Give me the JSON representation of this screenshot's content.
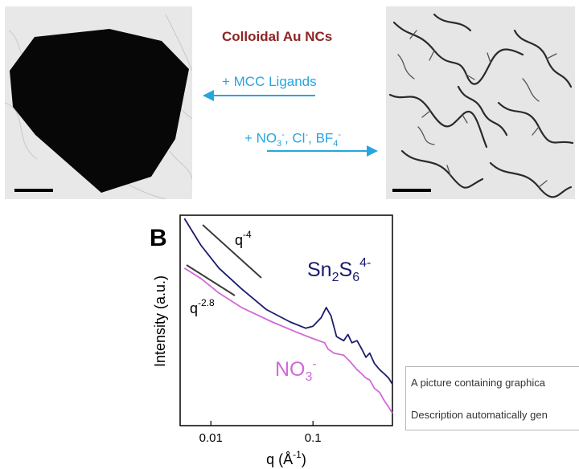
{
  "figure": {
    "title": "Colloidal Au NCs",
    "arrow_left_label": "+ MCC Ligands",
    "arrow_right_label_parts": [
      "+ NO",
      "3",
      "-",
      ", Cl",
      "-",
      ", BF",
      "4",
      "-"
    ],
    "panel_letter": "B"
  },
  "caption_box": {
    "line1": "A picture containing graphica",
    "line2": "Description automatically gen"
  },
  "colors": {
    "title": "#8e2424",
    "arrows": "#27a5e0",
    "sn2s6_series": "#1b1b6e",
    "no3_series": "#d06ad8"
  },
  "chart_data": {
    "type": "line",
    "xscale": "log",
    "xlim": [
      0.005,
      0.6
    ],
    "xticks": [
      {
        "value": 0.01,
        "label": "0.01"
      },
      {
        "value": 0.1,
        "label": "0.1"
      }
    ],
    "xlabel_parts": [
      "q (Å",
      "-1",
      ")"
    ],
    "ylabel": "Intensity (a.u.)",
    "series": [
      {
        "name_parts": [
          "Sn",
          "2",
          "S",
          "6",
          "4-"
        ],
        "color": "#1b1b6e",
        "points": [
          [
            0.0055,
            1.0
          ],
          [
            0.008,
            0.87
          ],
          [
            0.012,
            0.76
          ],
          [
            0.02,
            0.66
          ],
          [
            0.035,
            0.56
          ],
          [
            0.06,
            0.5
          ],
          [
            0.085,
            0.47
          ],
          [
            0.1,
            0.48
          ],
          [
            0.12,
            0.52
          ],
          [
            0.135,
            0.57
          ],
          [
            0.15,
            0.53
          ],
          [
            0.17,
            0.43
          ],
          [
            0.2,
            0.41
          ],
          [
            0.22,
            0.44
          ],
          [
            0.24,
            0.4
          ],
          [
            0.27,
            0.41
          ],
          [
            0.3,
            0.37
          ],
          [
            0.33,
            0.33
          ],
          [
            0.36,
            0.35
          ],
          [
            0.4,
            0.3
          ],
          [
            0.45,
            0.27
          ],
          [
            0.5,
            0.25
          ],
          [
            0.55,
            0.23
          ],
          [
            0.6,
            0.2
          ]
        ]
      },
      {
        "name_parts": [
          "NO",
          "3",
          "-"
        ],
        "color": "#d06ad8",
        "points": [
          [
            0.0055,
            0.76
          ],
          [
            0.008,
            0.71
          ],
          [
            0.012,
            0.64
          ],
          [
            0.02,
            0.57
          ],
          [
            0.04,
            0.5
          ],
          [
            0.07,
            0.45
          ],
          [
            0.1,
            0.42
          ],
          [
            0.13,
            0.4
          ],
          [
            0.14,
            0.37
          ],
          [
            0.16,
            0.35
          ],
          [
            0.2,
            0.34
          ],
          [
            0.23,
            0.31
          ],
          [
            0.27,
            0.27
          ],
          [
            0.3,
            0.25
          ],
          [
            0.33,
            0.23
          ],
          [
            0.36,
            0.22
          ],
          [
            0.4,
            0.18
          ],
          [
            0.45,
            0.16
          ],
          [
            0.5,
            0.12
          ],
          [
            0.55,
            0.09
          ],
          [
            0.6,
            0.06
          ]
        ]
      }
    ],
    "slope_guides": [
      {
        "label_base": "q",
        "label_exp": "-4",
        "x": [
          0.008,
          0.03
        ],
        "slope": -4
      },
      {
        "label_base": "q",
        "label_exp": "-2.8",
        "x": [
          0.006,
          0.018
        ],
        "slope": -2.8
      }
    ]
  }
}
